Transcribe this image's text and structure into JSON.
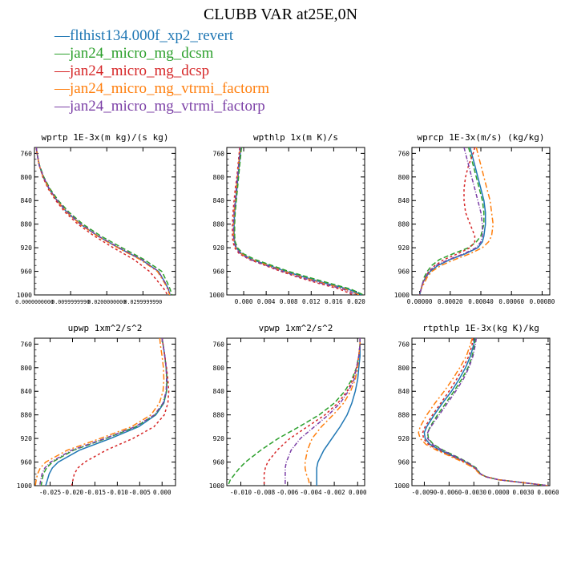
{
  "figure": {
    "title": "CLUBB VAR at25E,0N"
  },
  "legend": {
    "items": [
      {
        "label": "flthist134.000f_xp2_revert",
        "color": "#1f77b4"
      },
      {
        "label": "jan24_micro_mg_dcsm",
        "color": "#2ca02c"
      },
      {
        "label": "jan24_micro_mg_dcsp",
        "color": "#d62728"
      },
      {
        "label": "jan24_micro_mg_vtrmi_factorm",
        "color": "#ff7f0e"
      },
      {
        "label": "jan24_micro_mg_vtrmi_factorp",
        "color": "#7b3fa6"
      }
    ]
  },
  "chart_data": [
    {
      "type": "line",
      "title": "wprtp  1E-3x(m kg)/(s kg)",
      "ylim": [
        1000,
        750
      ],
      "xlim": [
        0,
        0.039
      ],
      "yticks": [
        "760",
        "800",
        "840",
        "880",
        "920",
        "960",
        "1000"
      ],
      "xticks": [
        "0.0000000000",
        "0.0099999990",
        "0.0200000000",
        "0.0299999990"
      ],
      "y": [
        750,
        760,
        780,
        800,
        820,
        840,
        860,
        880,
        900,
        920,
        940,
        960,
        980,
        990,
        1000
      ],
      "series": [
        {
          "values": [
            0.0005,
            0.0007,
            0.0013,
            0.0024,
            0.004,
            0.0062,
            0.009,
            0.0127,
            0.0175,
            0.0232,
            0.0295,
            0.0343,
            0.0362,
            0.037,
            0.0375
          ]
        },
        {
          "values": [
            0.0005,
            0.0007,
            0.0014,
            0.0026,
            0.0043,
            0.0066,
            0.0096,
            0.0134,
            0.0183,
            0.0242,
            0.0303,
            0.0352,
            0.0368,
            0.0375,
            0.038
          ]
        },
        {
          "values": [
            0.0005,
            0.0007,
            0.0013,
            0.0023,
            0.0038,
            0.0059,
            0.0085,
            0.012,
            0.0165,
            0.0218,
            0.0275,
            0.0318,
            0.0345,
            0.0358,
            0.0368
          ]
        },
        {
          "values": [
            0.0005,
            0.0007,
            0.0013,
            0.0024,
            0.004,
            0.0062,
            0.009,
            0.0126,
            0.0173,
            0.023,
            0.0292,
            0.034,
            0.036,
            0.0368,
            0.0374
          ]
        },
        {
          "values": [
            0.0005,
            0.0007,
            0.0013,
            0.0025,
            0.0041,
            0.0063,
            0.0092,
            0.0129,
            0.0176,
            0.0234,
            0.0296,
            0.0343,
            0.0362,
            0.037,
            0.0376
          ]
        }
      ]
    },
    {
      "type": "line",
      "title": "wpthlp  1x(m K)/s",
      "ylim": [
        1000,
        750
      ],
      "xlim": [
        -0.003,
        0.0215
      ],
      "yticks": [
        "760",
        "800",
        "840",
        "880",
        "920",
        "960",
        "1000"
      ],
      "xticks": [
        "0.000",
        "0.004",
        "0.008",
        "0.012",
        "0.016",
        "0.020"
      ],
      "y": [
        750,
        760,
        780,
        800,
        820,
        840,
        860,
        880,
        900,
        910,
        920,
        930,
        940,
        950,
        960,
        970,
        980,
        990,
        1000
      ],
      "series": [
        {
          "values": [
            -0.0005,
            -0.0006,
            -0.0008,
            -0.001,
            -0.0012,
            -0.0014,
            -0.0016,
            -0.0017,
            -0.0017,
            -0.0016,
            -0.0013,
            -0.0004,
            0.0015,
            0.0045,
            0.0075,
            0.0108,
            0.0145,
            0.0185,
            0.021
          ]
        },
        {
          "values": [
            -0.0004,
            -0.0005,
            -0.0007,
            -0.0009,
            -0.0011,
            -0.0013,
            -0.0015,
            -0.0016,
            -0.0016,
            -0.0015,
            -0.0011,
            -0.0001,
            0.002,
            0.005,
            0.008,
            0.0115,
            0.0152,
            0.019,
            0.0213
          ]
        },
        {
          "values": [
            -0.0007,
            -0.0008,
            -0.001,
            -0.0012,
            -0.0015,
            -0.0017,
            -0.0019,
            -0.002,
            -0.002,
            -0.0019,
            -0.0016,
            -0.0008,
            0.001,
            0.0038,
            0.0066,
            0.0096,
            0.0132,
            0.017,
            0.0195
          ]
        },
        {
          "values": [
            -0.0006,
            -0.0007,
            -0.0009,
            -0.0011,
            -0.0013,
            -0.0015,
            -0.0017,
            -0.0018,
            -0.0018,
            -0.0017,
            -0.0014,
            -0.0005,
            0.0014,
            0.0043,
            0.0072,
            0.0104,
            0.0141,
            0.018,
            0.0205
          ]
        },
        {
          "values": [
            -0.0006,
            -0.0007,
            -0.0009,
            -0.0011,
            -0.0013,
            -0.0015,
            -0.0017,
            -0.0018,
            -0.0018,
            -0.0017,
            -0.0014,
            -0.0006,
            0.0012,
            0.004,
            0.0069,
            0.01,
            0.0137,
            0.0176,
            0.0202
          ]
        }
      ]
    },
    {
      "type": "line",
      "title": "wprcp  1E-3x(m/s) (kg/kg)",
      "ylim": [
        1000,
        750
      ],
      "xlim": [
        -5e-05,
        0.00085
      ],
      "yticks": [
        "760",
        "800",
        "840",
        "880",
        "920",
        "960",
        "1000"
      ],
      "xticks": [
        "0.00000",
        "0.00020",
        "0.00040",
        "0.00060",
        "0.00080"
      ],
      "y": [
        750,
        760,
        780,
        800,
        820,
        840,
        860,
        880,
        900,
        910,
        920,
        930,
        940,
        950,
        960,
        970,
        980,
        990,
        1000
      ],
      "series": [
        {
          "values": [
            0.00033,
            0.00034,
            0.00036,
            0.00038,
            0.0004,
            0.00042,
            0.00043,
            0.00043,
            0.00042,
            0.00041,
            0.00038,
            0.0003,
            0.0002,
            0.00012,
            7e-05,
            4e-05,
            2e-05,
            1e-05,
            0.0
          ]
        },
        {
          "values": [
            0.00032,
            0.00033,
            0.00035,
            0.00037,
            0.00039,
            0.00041,
            0.00042,
            0.00042,
            0.0004,
            0.00037,
            0.00032,
            0.00022,
            0.00013,
            8e-05,
            5e-05,
            3e-05,
            2e-05,
            1e-05,
            0.0
          ]
        },
        {
          "values": [
            0.00036,
            0.00035,
            0.00032,
            0.0003,
            0.00029,
            0.00029,
            0.0003,
            0.00033,
            0.00036,
            0.00036,
            0.00033,
            0.00025,
            0.00016,
            0.0001,
            6e-05,
            4e-05,
            2e-05,
            1e-05,
            0.0
          ]
        },
        {
          "values": [
            0.00037,
            0.00038,
            0.0004,
            0.00042,
            0.00044,
            0.00046,
            0.00047,
            0.00048,
            0.00047,
            0.00045,
            0.00041,
            0.00033,
            0.00023,
            0.00014,
            8e-05,
            5e-05,
            3e-05,
            1e-05,
            0.0
          ]
        },
        {
          "values": [
            0.00029,
            0.0003,
            0.00032,
            0.00034,
            0.00036,
            0.00038,
            0.0004,
            0.00041,
            0.00041,
            0.0004,
            0.00037,
            0.00029,
            0.00019,
            0.00011,
            6e-05,
            4e-05,
            2e-05,
            1e-05,
            0.0
          ]
        }
      ]
    },
    {
      "type": "line",
      "title": "upwp  1xm^2/s^2",
      "ylim": [
        1000,
        750
      ],
      "xlim": [
        -0.0285,
        0.003
      ],
      "yticks": [
        "760",
        "800",
        "840",
        "880",
        "920",
        "960",
        "1000"
      ],
      "xticks": [
        "-0.025",
        "-0.020",
        "-0.015",
        "-0.010",
        "-0.005",
        "0.000"
      ],
      "y": [
        750,
        760,
        780,
        800,
        820,
        840,
        860,
        880,
        900,
        920,
        940,
        960,
        970,
        980,
        990,
        1000
      ],
      "series": [
        {
          "values": [
            0.0,
            0.0002,
            0.0006,
            0.0009,
            0.0011,
            0.001,
            0.0004,
            -0.0014,
            -0.0052,
            -0.0115,
            -0.0185,
            -0.0232,
            -0.0245,
            -0.0252,
            -0.0256,
            -0.026
          ]
        },
        {
          "values": [
            0.0,
            0.0002,
            0.0006,
            0.0009,
            0.0011,
            0.001,
            0.0003,
            -0.0016,
            -0.0058,
            -0.0125,
            -0.0198,
            -0.0245,
            -0.0258,
            -0.0265,
            -0.0268,
            -0.027
          ]
        },
        {
          "values": [
            0.0,
            0.0002,
            0.0006,
            0.001,
            0.0013,
            0.0015,
            0.0013,
            0.0005,
            -0.0018,
            -0.0065,
            -0.0125,
            -0.0173,
            -0.0188,
            -0.0196,
            -0.0199,
            -0.0202
          ]
        },
        {
          "values": [
            -0.0005,
            -0.0004,
            0.0,
            0.0003,
            0.0004,
            0.0002,
            -0.0006,
            -0.0025,
            -0.0068,
            -0.0138,
            -0.0212,
            -0.026,
            -0.0272,
            -0.0278,
            -0.0281,
            -0.0283
          ]
        },
        {
          "values": [
            0.0,
            0.0002,
            0.0006,
            0.0009,
            0.001,
            0.0009,
            0.0002,
            -0.0017,
            -0.006,
            -0.0128,
            -0.0202,
            -0.0249,
            -0.0262,
            -0.0268,
            -0.0271,
            -0.0273
          ]
        }
      ]
    },
    {
      "type": "line",
      "title": "vpwp  1xm^2/s^2",
      "ylim": [
        1000,
        750
      ],
      "xlim": [
        -0.0112,
        0.0006
      ],
      "yticks": [
        "760",
        "800",
        "840",
        "880",
        "920",
        "960",
        "1000"
      ],
      "xticks": [
        "-0.010",
        "-0.008",
        "-0.006",
        "-0.004",
        "-0.002",
        "0.000"
      ],
      "y": [
        750,
        760,
        780,
        800,
        820,
        840,
        860,
        880,
        900,
        920,
        940,
        960,
        970,
        980,
        990,
        1000
      ],
      "series": [
        {
          "values": [
            0.0002,
            0.0002,
            0.0002,
            0.0001,
            0.0,
            -0.0002,
            -0.0005,
            -0.0009,
            -0.0015,
            -0.0022,
            -0.0029,
            -0.0034,
            -0.0035,
            -0.0035,
            -0.0035,
            -0.0035
          ]
        },
        {
          "values": [
            0.0002,
            0.0002,
            0.0001,
            -0.0001,
            -0.0005,
            -0.0011,
            -0.002,
            -0.0033,
            -0.005,
            -0.0068,
            -0.0083,
            -0.0096,
            -0.0101,
            -0.0105,
            -0.0109,
            -0.0111
          ]
        },
        {
          "values": [
            0.0002,
            0.0002,
            0.0001,
            -0.0001,
            -0.0004,
            -0.0009,
            -0.0017,
            -0.0028,
            -0.0043,
            -0.0058,
            -0.0069,
            -0.0077,
            -0.0079,
            -0.008,
            -0.008,
            -0.008
          ]
        },
        {
          "values": [
            0.0002,
            0.0002,
            0.0001,
            0.0,
            -0.0002,
            -0.0006,
            -0.0012,
            -0.0021,
            -0.0031,
            -0.0039,
            -0.0043,
            -0.0045,
            -0.0045,
            -0.0044,
            -0.0042,
            -0.0041
          ]
        },
        {
          "values": [
            0.0002,
            0.0002,
            0.0001,
            -0.0001,
            -0.0003,
            -0.0008,
            -0.0015,
            -0.0025,
            -0.0037,
            -0.0049,
            -0.0057,
            -0.0061,
            -0.0062,
            -0.0062,
            -0.0062,
            -0.0062
          ]
        }
      ]
    },
    {
      "type": "line",
      "title": "rtpthlp  1E-3x(kg K)/kg",
      "ylim": [
        1000,
        750
      ],
      "xlim": [
        -0.0105,
        0.0062
      ],
      "yticks": [
        "760",
        "800",
        "840",
        "880",
        "920",
        "960",
        "1000"
      ],
      "xticks": [
        "-0.0090",
        "-0.0060",
        "-0.0030",
        "0.0000",
        "0.0030",
        "0.0060"
      ],
      "y": [
        750,
        760,
        780,
        800,
        820,
        840,
        860,
        880,
        900,
        910,
        920,
        930,
        940,
        950,
        960,
        970,
        980,
        985,
        990,
        995,
        1000
      ],
      "series": [
        {
          "values": [
            -0.0029,
            -0.003,
            -0.0034,
            -0.004,
            -0.0048,
            -0.0057,
            -0.0068,
            -0.0078,
            -0.0087,
            -0.009,
            -0.0089,
            -0.0083,
            -0.0071,
            -0.0055,
            -0.004,
            -0.0028,
            -0.0022,
            -0.0015,
            0.0,
            0.003,
            0.006
          ]
        },
        {
          "values": [
            -0.0028,
            -0.0029,
            -0.0032,
            -0.0037,
            -0.0045,
            -0.0054,
            -0.0064,
            -0.0074,
            -0.0083,
            -0.0086,
            -0.0085,
            -0.0079,
            -0.0067,
            -0.0052,
            -0.0038,
            -0.0027,
            -0.0022,
            -0.0015,
            0.0,
            0.003,
            0.006
          ]
        },
        {
          "values": [
            -0.0031,
            -0.0032,
            -0.0036,
            -0.0043,
            -0.0051,
            -0.006,
            -0.007,
            -0.008,
            -0.0089,
            -0.0092,
            -0.0091,
            -0.0085,
            -0.0073,
            -0.0057,
            -0.0041,
            -0.0029,
            -0.0023,
            -0.0015,
            0.0,
            0.003,
            0.006
          ]
        },
        {
          "values": [
            -0.0032,
            -0.0034,
            -0.0039,
            -0.0047,
            -0.0056,
            -0.0066,
            -0.0077,
            -0.0087,
            -0.0095,
            -0.0097,
            -0.0095,
            -0.0088,
            -0.0075,
            -0.0059,
            -0.0043,
            -0.003,
            -0.0023,
            -0.0015,
            0.0,
            0.003,
            0.006
          ]
        },
        {
          "values": [
            -0.0027,
            -0.0028,
            -0.0031,
            -0.0036,
            -0.0043,
            -0.0052,
            -0.0062,
            -0.0072,
            -0.0082,
            -0.0086,
            -0.0086,
            -0.008,
            -0.0068,
            -0.0053,
            -0.0039,
            -0.0028,
            -0.0022,
            -0.0015,
            0.0,
            0.003,
            0.006
          ]
        }
      ]
    }
  ]
}
